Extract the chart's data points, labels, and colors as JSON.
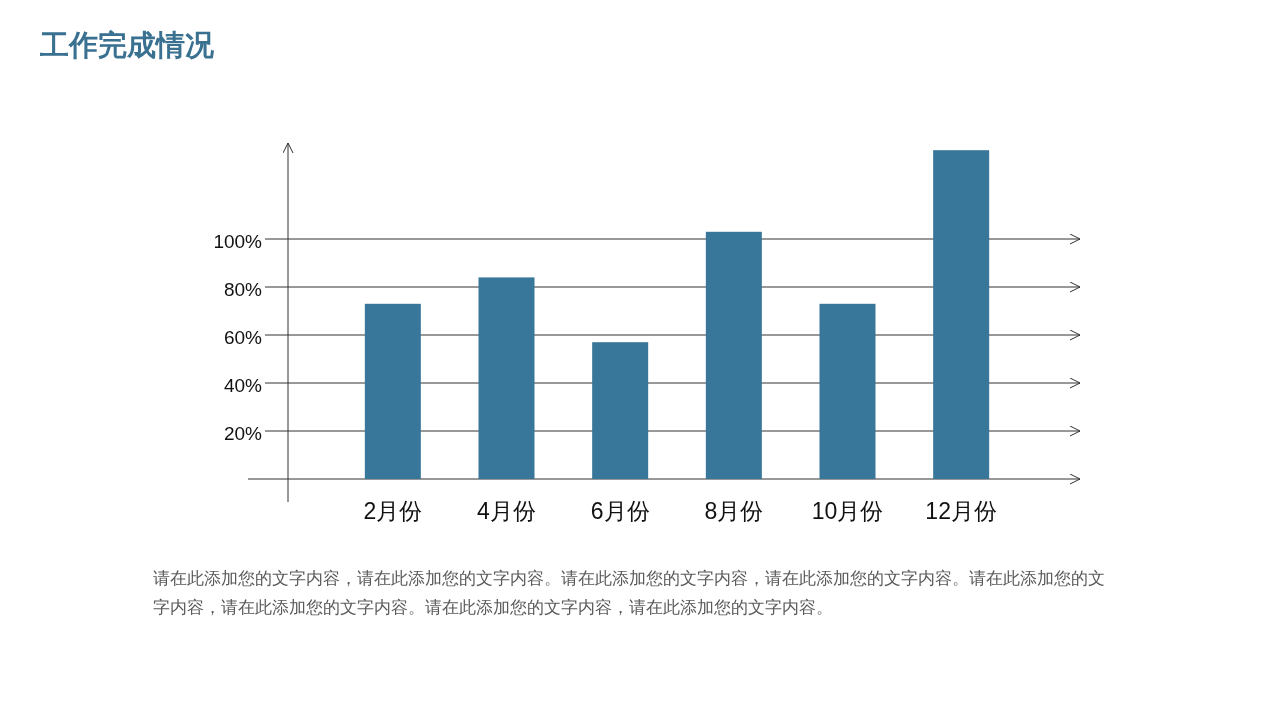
{
  "chart_data": {
    "type": "bar",
    "title": "工作完成情况",
    "categories": [
      "2月份",
      "4月份",
      "6月份",
      "8月份",
      "10月份",
      "12月份"
    ],
    "values": [
      73,
      84,
      57,
      103,
      73,
      137
    ],
    "color": "#38779a",
    "ylim": [
      0,
      140
    ],
    "yticks": [
      {
        "value": 20,
        "label": "20%"
      },
      {
        "value": 40,
        "label": "40%"
      },
      {
        "value": 60,
        "label": "60%"
      },
      {
        "value": 80,
        "label": "80%"
      },
      {
        "value": 100,
        "label": "100%"
      }
    ],
    "grid": "y",
    "annotations": [
      "请在此添加您的文字内容，请在此添加您的文字内容。请在此添加您的文字内容，请在此添加您的文字内容。请在此添加您的文字内容，请在此添加您的文字内容。请在此添加您的文字内容，请在此添加您的文字内容。"
    ]
  }
}
